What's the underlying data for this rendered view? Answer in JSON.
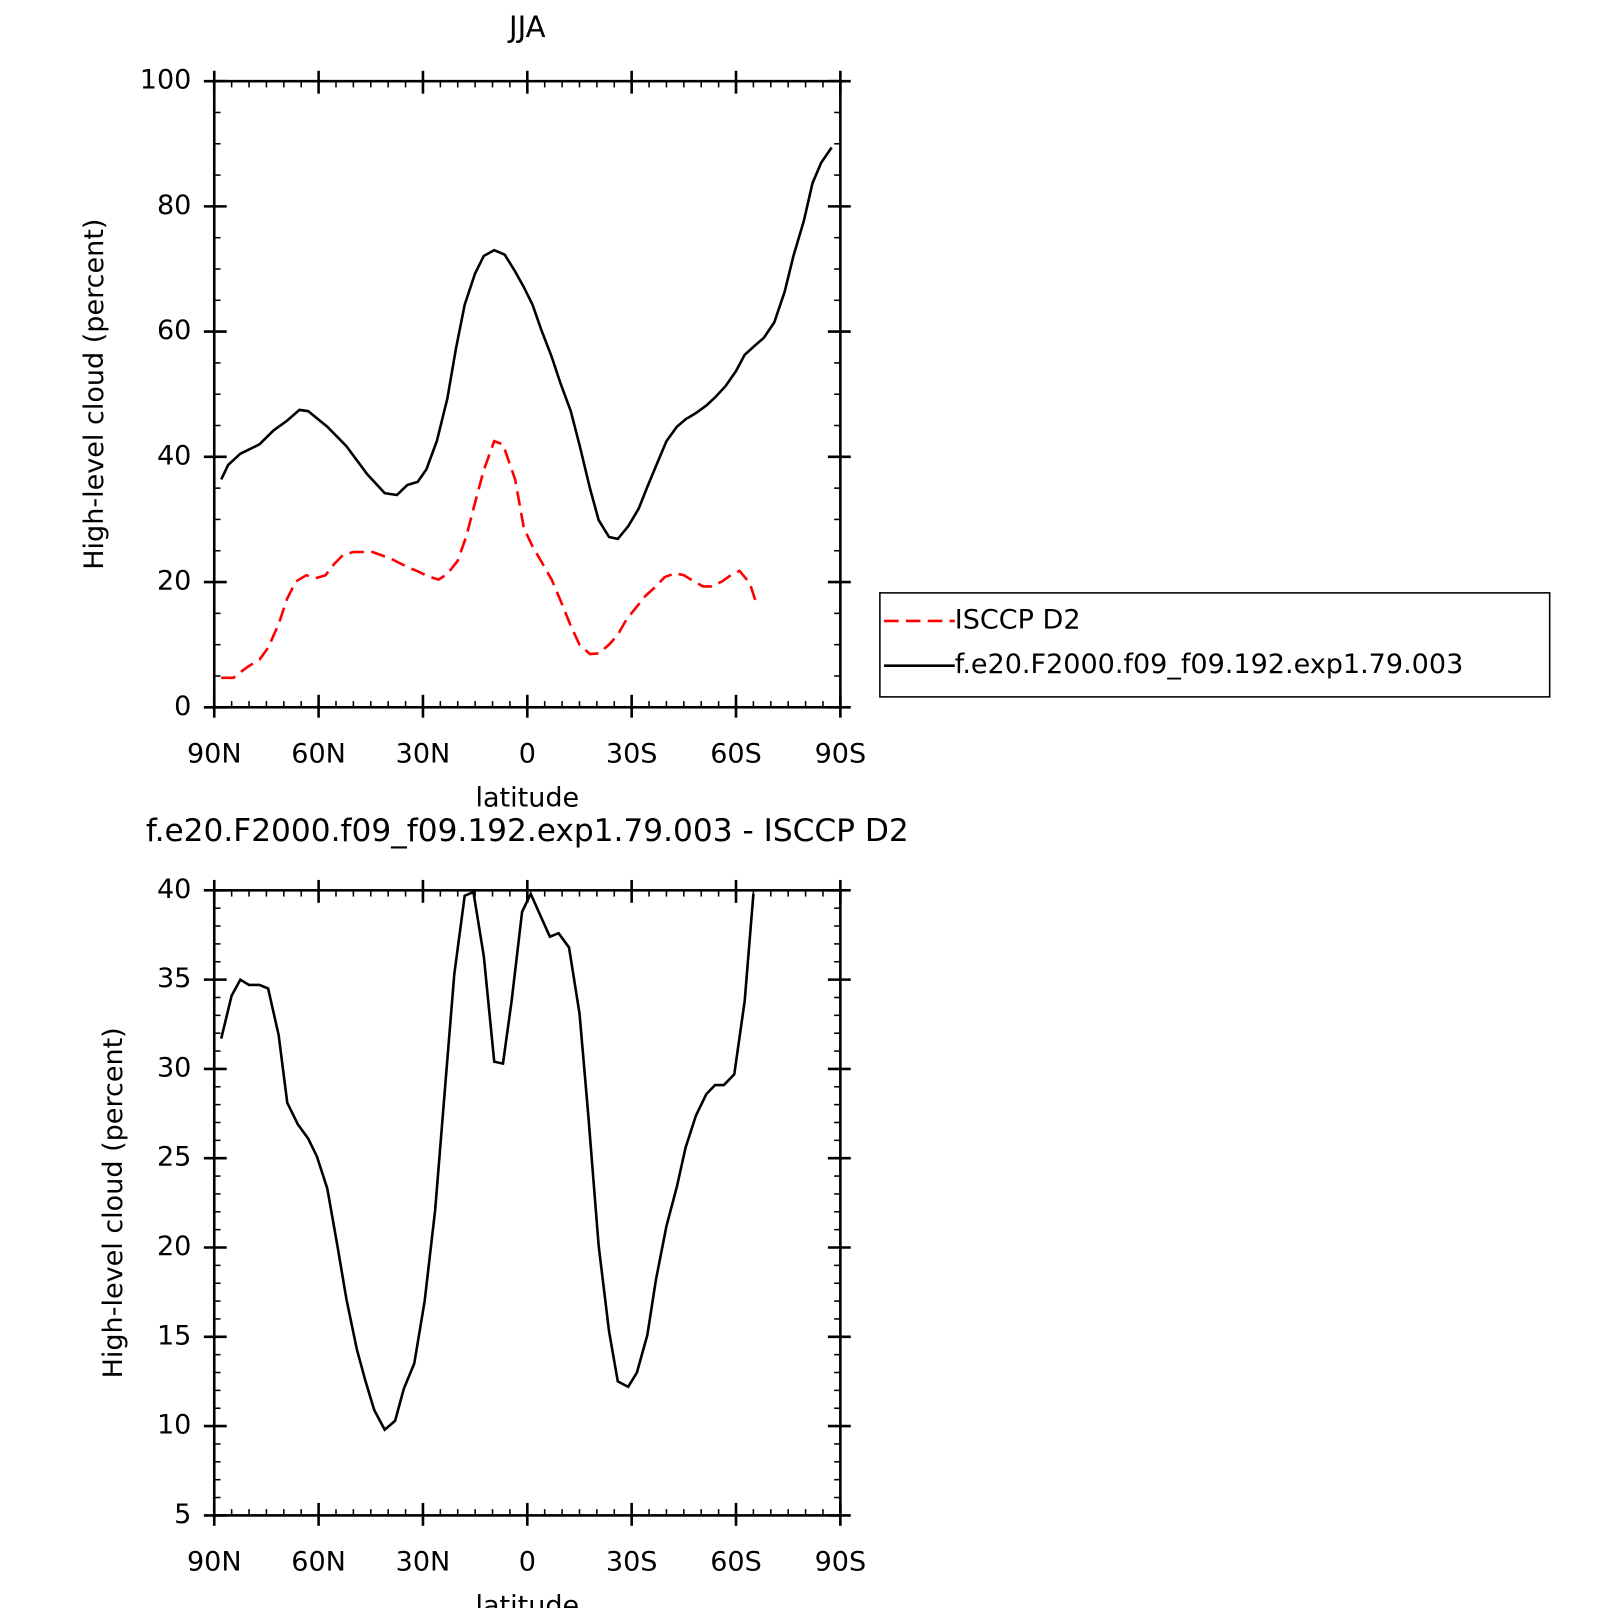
{
  "chart_data": [
    {
      "type": "line",
      "title": "JJA",
      "xlabel": "latitude",
      "ylabel": "High-level cloud (percent)",
      "xlim": [
        90,
        -90
      ],
      "xticks": [
        {
          "value": 90,
          "label": "90N"
        },
        {
          "value": 60,
          "label": "60N"
        },
        {
          "value": 30,
          "label": "30N"
        },
        0,
        {
          "value": -30,
          "label": "30S"
        },
        {
          "value": -60,
          "label": "60S"
        },
        {
          "value": -90,
          "label": "90S"
        }
      ],
      "ylim": [
        0,
        100
      ],
      "yticks": [
        0,
        20,
        40,
        60,
        80,
        100
      ],
      "legend": "right",
      "series": [
        {
          "name": "ISCCP D2",
          "color": "#ff0000",
          "dash": "dashed",
          "x": [
            88,
            84.5,
            82.5,
            80,
            77,
            74.5,
            71.5,
            69,
            66.5,
            63.5,
            61,
            58,
            55.5,
            53,
            50,
            47.5,
            44.5,
            42,
            39.5,
            37,
            34,
            31,
            28.5,
            25.5,
            23,
            20,
            17.5,
            15,
            12.5,
            9.5,
            7,
            3.5,
            1,
            -1.5,
            -4,
            -7,
            -9.5,
            -12.5,
            -15,
            -18,
            -20.5,
            -23.5,
            -26,
            -28.5,
            -31.5,
            -34,
            -37,
            -39.5,
            -42.5,
            -45,
            -48,
            -50.5,
            -53,
            -56,
            -58.5,
            -61,
            -64,
            -66
          ],
          "values": [
            4.7,
            4.7,
            5.6,
            6.6,
            7.6,
            9.5,
            13.3,
            17.4,
            20.1,
            21.1,
            20.6,
            21.1,
            22.9,
            24.3,
            24.8,
            24.8,
            24.8,
            24.3,
            23.8,
            23.1,
            22.3,
            21.6,
            20.9,
            20.4,
            21.3,
            23.4,
            27.4,
            32.7,
            37.9,
            42.5,
            42,
            36.4,
            28.6,
            25.7,
            23.3,
            20.4,
            17.1,
            13,
            10,
            8.5,
            8.6,
            10,
            11.6,
            14,
            16.1,
            17.8,
            19.3,
            20.8,
            21.4,
            21.1,
            20.1,
            19.3,
            19.3,
            20.1,
            21.1,
            21.8,
            19.8,
            16.3
          ]
        },
        {
          "name": "f.e20.F2000.f09_f09.192.exp1.79.003",
          "color": "#000000",
          "dash": "solid",
          "x": [
            88,
            86,
            82.5,
            77,
            73,
            69,
            65.5,
            63,
            57.5,
            52,
            46,
            41,
            37.5,
            34.5,
            31.5,
            29,
            26,
            23,
            20.5,
            18,
            15,
            12.5,
            9.5,
            6.5,
            3.5,
            1,
            -1.5,
            -4,
            -7,
            -9.5,
            -12.5,
            -15,
            -18,
            -20.5,
            -23.5,
            -26,
            -29,
            -32,
            -34.5,
            -37.5,
            -40,
            -43,
            -45.5,
            -48.5,
            -51.5,
            -54,
            -57,
            -60,
            -62.5,
            -65.5,
            -68,
            -71,
            -74,
            -76.5,
            -79.5,
            -82,
            -84.5,
            -87.5
          ],
          "values": [
            36.4,
            38.7,
            40.5,
            42,
            44.2,
            45.8,
            47.5,
            47.3,
            44.8,
            41.7,
            37.2,
            34.2,
            33.9,
            35.5,
            36,
            38,
            42.5,
            49.3,
            57.3,
            64.3,
            69.3,
            72.1,
            73,
            72.3,
            69.6,
            67.1,
            64.3,
            60.3,
            56,
            51.8,
            47.3,
            41.9,
            35,
            29.9,
            27.2,
            26.9,
            28.9,
            31.7,
            35.2,
            39.2,
            42.5,
            44.8,
            46,
            47,
            48.2,
            49.5,
            51.3,
            53.7,
            56.3,
            57.8,
            59,
            61.5,
            66.4,
            72.1,
            77.7,
            83.7,
            87,
            89.4
          ]
        }
      ]
    },
    {
      "type": "line",
      "title": "f.e20.F2000.f09_f09.192.exp1.79.003 - ISCCP D2",
      "xlabel": "latitude",
      "ylabel": "High-level cloud (percent)",
      "xlim": [
        90,
        -90
      ],
      "xticks": [
        {
          "value": 90,
          "label": "90N"
        },
        {
          "value": 60,
          "label": "60N"
        },
        {
          "value": 30,
          "label": "30N"
        },
        0,
        {
          "value": -30,
          "label": "30S"
        },
        {
          "value": -60,
          "label": "60S"
        },
        {
          "value": -90,
          "label": "90S"
        }
      ],
      "ylim": [
        5,
        40
      ],
      "yticks": [
        5,
        10,
        15,
        20,
        25,
        30,
        35,
        40
      ],
      "color": "#000000",
      "x": [
        88,
        85,
        82.5,
        80,
        77,
        74.5,
        71.5,
        69,
        66,
        63,
        60.5,
        57.5,
        54.5,
        52,
        49,
        46.5,
        44,
        41,
        38,
        35.5,
        32.5,
        29.5,
        26.5,
        23.5,
        21,
        18,
        15.5,
        12.5,
        9.5,
        7,
        4.5,
        1.5,
        -1,
        -3.5,
        -6.5,
        -9,
        -12,
        -15,
        -17.5,
        -20.5,
        -23.5,
        -26,
        -29,
        -31.5,
        -34.5,
        -37,
        -40,
        -43,
        -45.5,
        -48.5,
        -51.5,
        -54,
        -56.5,
        -59.5,
        -62.5,
        -65
      ],
      "values": [
        31.7,
        34.1,
        35,
        34.7,
        34.7,
        34.5,
        31.9,
        28.1,
        26.9,
        26.1,
        25.1,
        23.3,
        20,
        17.1,
        14.3,
        12.5,
        10.9,
        9.8,
        10.3,
        12.1,
        13.5,
        17,
        22.1,
        29.3,
        35.3,
        39.7,
        39.9,
        36.3,
        30.4,
        30.3,
        33.8,
        38.8,
        39.8,
        38.7,
        37.4,
        37.6,
        36.8,
        33.1,
        27.5,
        20.1,
        15.3,
        12.5,
        12.2,
        13,
        15.1,
        18.2,
        21.2,
        23.4,
        25.6,
        27.4,
        28.6,
        29.1,
        29.1,
        29.7,
        33.8,
        39.8
      ]
    }
  ]
}
